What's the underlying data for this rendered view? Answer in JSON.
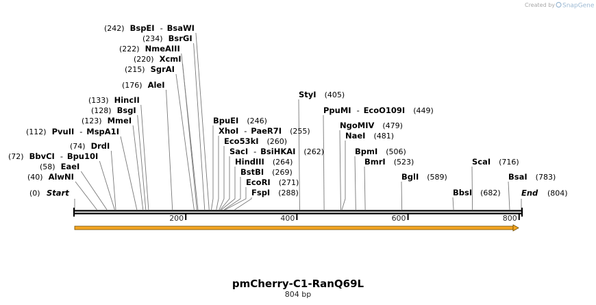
{
  "credit": {
    "prefix": "Created by",
    "brand": "SnapGene"
  },
  "sequence": {
    "name": "pmCherry-C1-RanQ69L",
    "length_label": "804 bp",
    "length": 804
  },
  "ruler": {
    "ticks": [
      "200",
      "400",
      "600",
      "800"
    ]
  },
  "start_label": "Start",
  "start_pos": "(0)",
  "end_label": "End",
  "end_pos": "(804)",
  "sites": [
    {
      "pos": "(40)",
      "names": [
        "AlwNI"
      ],
      "bp": 40
    },
    {
      "pos": "(58)",
      "names": [
        "EaeI"
      ],
      "bp": 58
    },
    {
      "pos": "(72)",
      "names": [
        "BbvCI",
        "Bpu10I"
      ],
      "bp": 72
    },
    {
      "pos": "(74)",
      "names": [
        "DrdI"
      ],
      "bp": 74
    },
    {
      "pos": "(112)",
      "names": [
        "PvuII",
        "MspA1I"
      ],
      "bp": 112
    },
    {
      "pos": "(123)",
      "names": [
        "MmeI"
      ],
      "bp": 123
    },
    {
      "pos": "(128)",
      "names": [
        "BsgI"
      ],
      "bp": 128
    },
    {
      "pos": "(133)",
      "names": [
        "HincII"
      ],
      "bp": 133
    },
    {
      "pos": "(176)",
      "names": [
        "AleI"
      ],
      "bp": 176
    },
    {
      "pos": "(215)",
      "names": [
        "SgrAI"
      ],
      "bp": 215
    },
    {
      "pos": "(220)",
      "names": [
        "XcmI"
      ],
      "bp": 220
    },
    {
      "pos": "(222)",
      "names": [
        "NmeAIII"
      ],
      "bp": 222
    },
    {
      "pos": "(234)",
      "names": [
        "BsrGI"
      ],
      "bp": 234
    },
    {
      "pos": "(242)",
      "names": [
        "BspEI",
        "BsaWI"
      ],
      "bp": 242
    },
    {
      "pos": "(246)",
      "names": [
        "BpuEI"
      ],
      "bp": 246
    },
    {
      "pos": "(255)",
      "names": [
        "XhoI",
        "PaeR7I"
      ],
      "bp": 255
    },
    {
      "pos": "(260)",
      "names": [
        "Eco53kI"
      ],
      "bp": 260
    },
    {
      "pos": "(262)",
      "names": [
        "SacI",
        "BsiHKAI"
      ],
      "bp": 262
    },
    {
      "pos": "(264)",
      "names": [
        "HindIII"
      ],
      "bp": 264
    },
    {
      "pos": "(269)",
      "names": [
        "BstBI"
      ],
      "bp": 269
    },
    {
      "pos": "(271)",
      "names": [
        "EcoRI"
      ],
      "bp": 271
    },
    {
      "pos": "(288)",
      "names": [
        "FspI"
      ],
      "bp": 288
    },
    {
      "pos": "(405)",
      "names": [
        "StyI"
      ],
      "bp": 405
    },
    {
      "pos": "(449)",
      "names": [
        "PpuMI",
        "EcoO109I"
      ],
      "bp": 449
    },
    {
      "pos": "(479)",
      "names": [
        "NgoMIV"
      ],
      "bp": 479
    },
    {
      "pos": "(481)",
      "names": [
        "NaeI"
      ],
      "bp": 481
    },
    {
      "pos": "(506)",
      "names": [
        "BpmI"
      ],
      "bp": 506
    },
    {
      "pos": "(523)",
      "names": [
        "BmrI"
      ],
      "bp": 523
    },
    {
      "pos": "(589)",
      "names": [
        "BglI"
      ],
      "bp": 589
    },
    {
      "pos": "(682)",
      "names": [
        "BbsI"
      ],
      "bp": 682
    },
    {
      "pos": "(716)",
      "names": [
        "ScaI"
      ],
      "bp": 716
    },
    {
      "pos": "(783)",
      "names": [
        "BsaI"
      ],
      "bp": 783
    }
  ],
  "colors": {
    "feature_arrow": "#f5a623",
    "feature_outline": "#6b4a00",
    "leader": "#777777",
    "backbone": "#000000"
  }
}
